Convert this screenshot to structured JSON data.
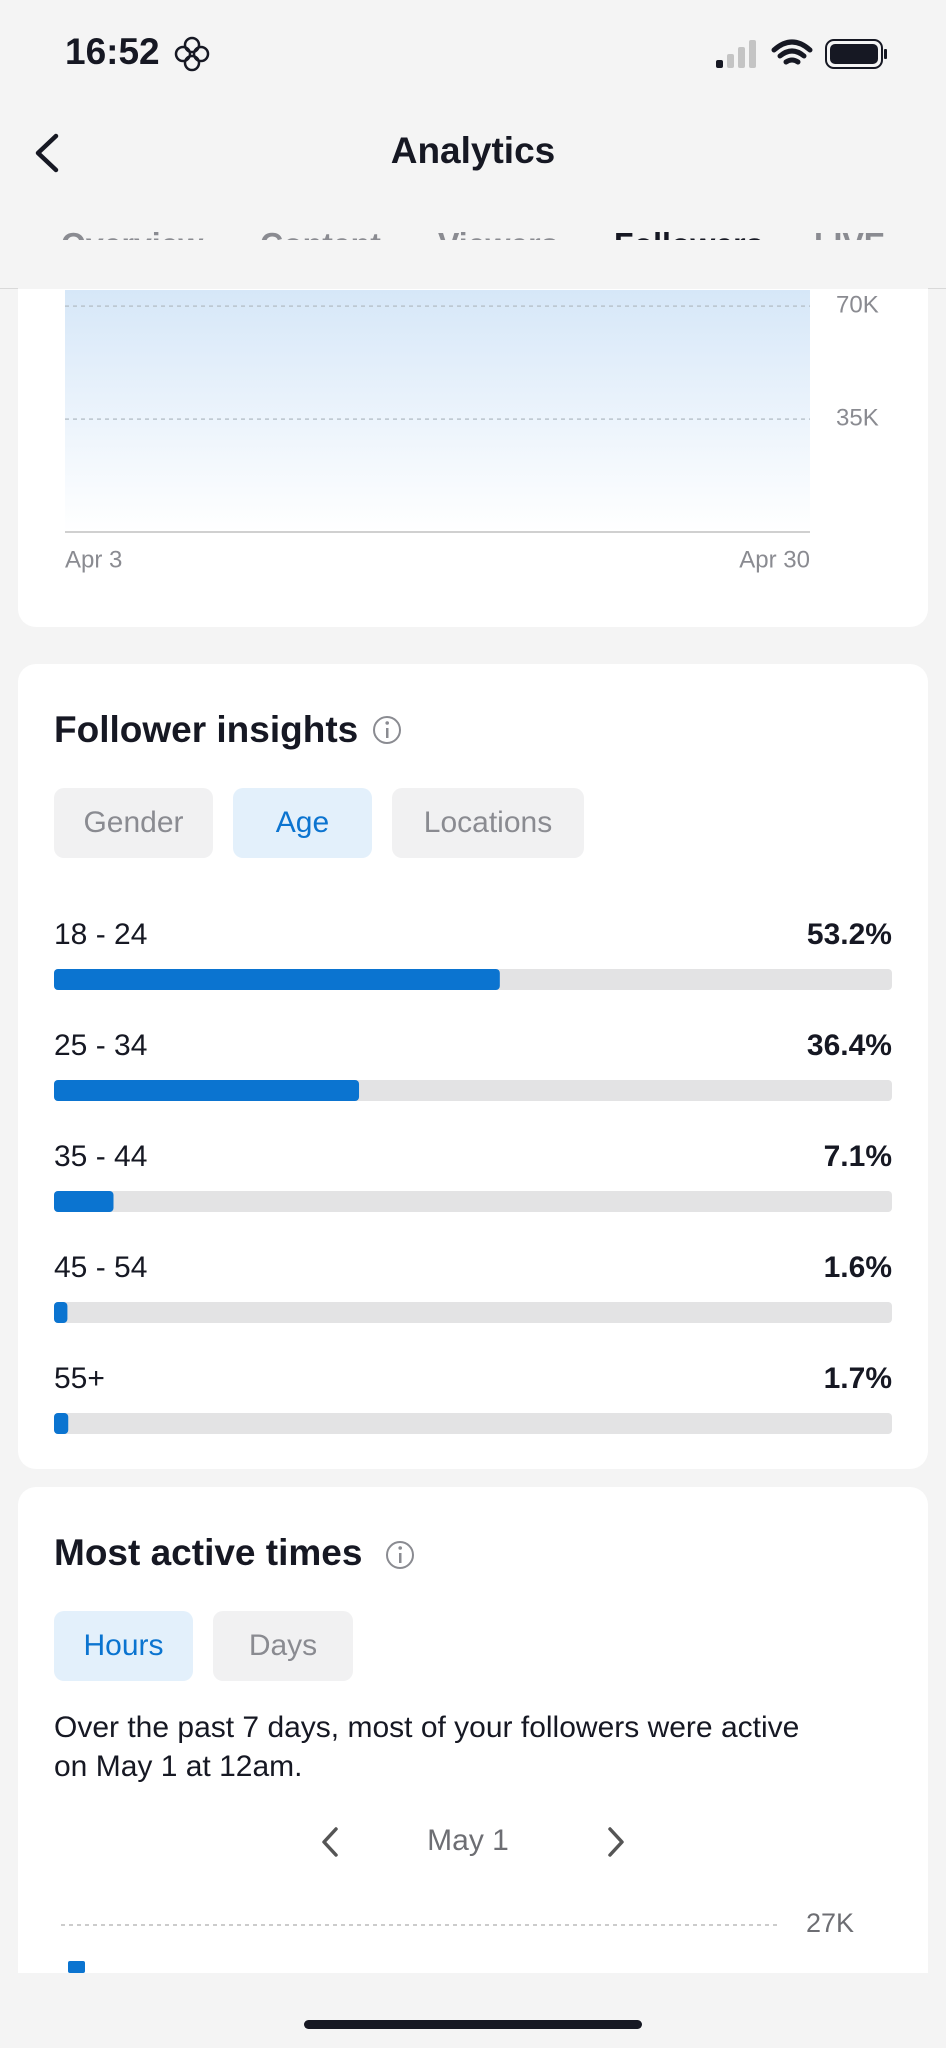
{
  "status_bar": {
    "time": "16:52"
  },
  "header": {
    "title": "Analytics"
  },
  "tabs": [
    "Overview",
    "Content",
    "Viewers",
    "Followers",
    "LIVE"
  ],
  "follower_chart": {
    "type": "area",
    "x_labels": [
      "Apr 3",
      "Apr 30"
    ],
    "ylim": [
      0,
      75000
    ],
    "yticks": [
      {
        "value": 70000,
        "label": "70K"
      },
      {
        "value": 35000,
        "label": "35K"
      }
    ]
  },
  "follower_insights": {
    "title": "Follower insights",
    "filters": [
      "Gender",
      "Age",
      "Locations"
    ],
    "categories": [
      "18 - 24",
      "25 - 34",
      "35 - 44",
      "45 - 54",
      "55+"
    ],
    "values": [
      53.2,
      36.4,
      7.1,
      1.6,
      1.7
    ],
    "value_labels": [
      "53.2%",
      "36.4%",
      "7.1%",
      "1.6%",
      "1.7%"
    ],
    "xlim": [
      0,
      100
    ],
    "color": "#0b74d0"
  },
  "most_active_times": {
    "title": "Most active times",
    "filters": [
      "Hours",
      "Days"
    ],
    "summary": [
      "Over the past 7 days, most of your followers were active",
      "on May 1 at 12am."
    ],
    "date": "May 1",
    "yticks": [
      {
        "value": 27000,
        "label": "27K"
      }
    ]
  }
}
